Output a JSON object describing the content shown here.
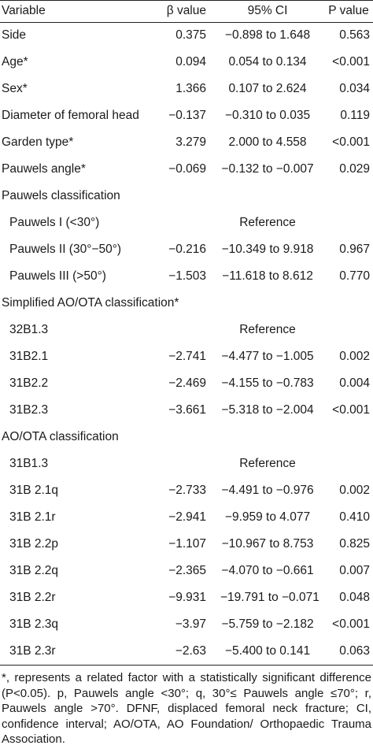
{
  "table": {
    "header": [
      "Variable",
      "β value",
      "95% CI",
      "P value"
    ],
    "rows": [
      [
        "Side",
        "0.375",
        "−0.898 to 1.648",
        "0.563"
      ],
      [
        "Age*",
        "0.094",
        "0.054 to 0.134",
        "<0.001"
      ],
      [
        "Sex*",
        "1.366",
        "0.107 to 2.624",
        "0.034"
      ],
      [
        "Diameter of femoral head",
        "−0.137",
        "−0.310 to 0.035",
        "0.119"
      ],
      [
        "Garden type*",
        "3.279",
        "2.000 to 4.558",
        "<0.001"
      ],
      [
        "Pauwels angle*",
        "−0.069",
        "−0.132 to −0.007",
        "0.029"
      ],
      [
        "Pauwels classification"
      ],
      [
        "Pauwels I (<30°)",
        "Reference"
      ],
      [
        "Pauwels II (30°−50°)",
        "−0.216",
        "−10.349 to 9.918",
        "0.967"
      ],
      [
        "Pauwels III (>50°)",
        "−1.503",
        "−11.618 to 8.612",
        "0.770"
      ],
      [
        "Simplified AO/OTA classification*"
      ],
      [
        "32B1.3",
        "Reference"
      ],
      [
        "31B2.1",
        "−2.741",
        "−4.477 to −1.005",
        "0.002"
      ],
      [
        "31B2.2",
        "−2.469",
        "−4.155 to −0.783",
        "0.004"
      ],
      [
        "31B2.3",
        "−3.661",
        "−5.318 to −2.004",
        "<0.001"
      ],
      [
        "AO/OTA classification"
      ],
      [
        "31B1.3",
        "Reference"
      ],
      [
        "31B 2.1q",
        "−2.733",
        "−4.491 to −0.976",
        "0.002"
      ],
      [
        "31B 2.1r",
        "−2.941",
        "−9.959 to 4.077",
        "0.410"
      ],
      [
        "31B 2.2p",
        "−1.107",
        "−10.967 to 8.753",
        "0.825"
      ],
      [
        "31B 2.2q",
        "−2.365",
        "−4.070 to −0.661",
        "0.007"
      ],
      [
        "31B 2.2r",
        "−9.931",
        "−19.791 to −0.071",
        "0.048"
      ],
      [
        "31B 2.3q",
        "−3.97",
        "−5.759 to −2.182",
        "<0.001"
      ],
      [
        "31B 2.3r",
        "−2.63",
        "−5.400 to 0.141",
        "0.063"
      ]
    ]
  },
  "footnote": "*, represents a related factor with a statistically significant difference (P<0.05). p, Pauwels angle <30°; q, 30°≤ Pauwels angle ≤70°; r, Pauwels angle >70°. DFNF, displaced femoral neck fracture; CI, confidence interval; AO/OTA, AO Foundation/ Orthopaedic Trauma Association."
}
